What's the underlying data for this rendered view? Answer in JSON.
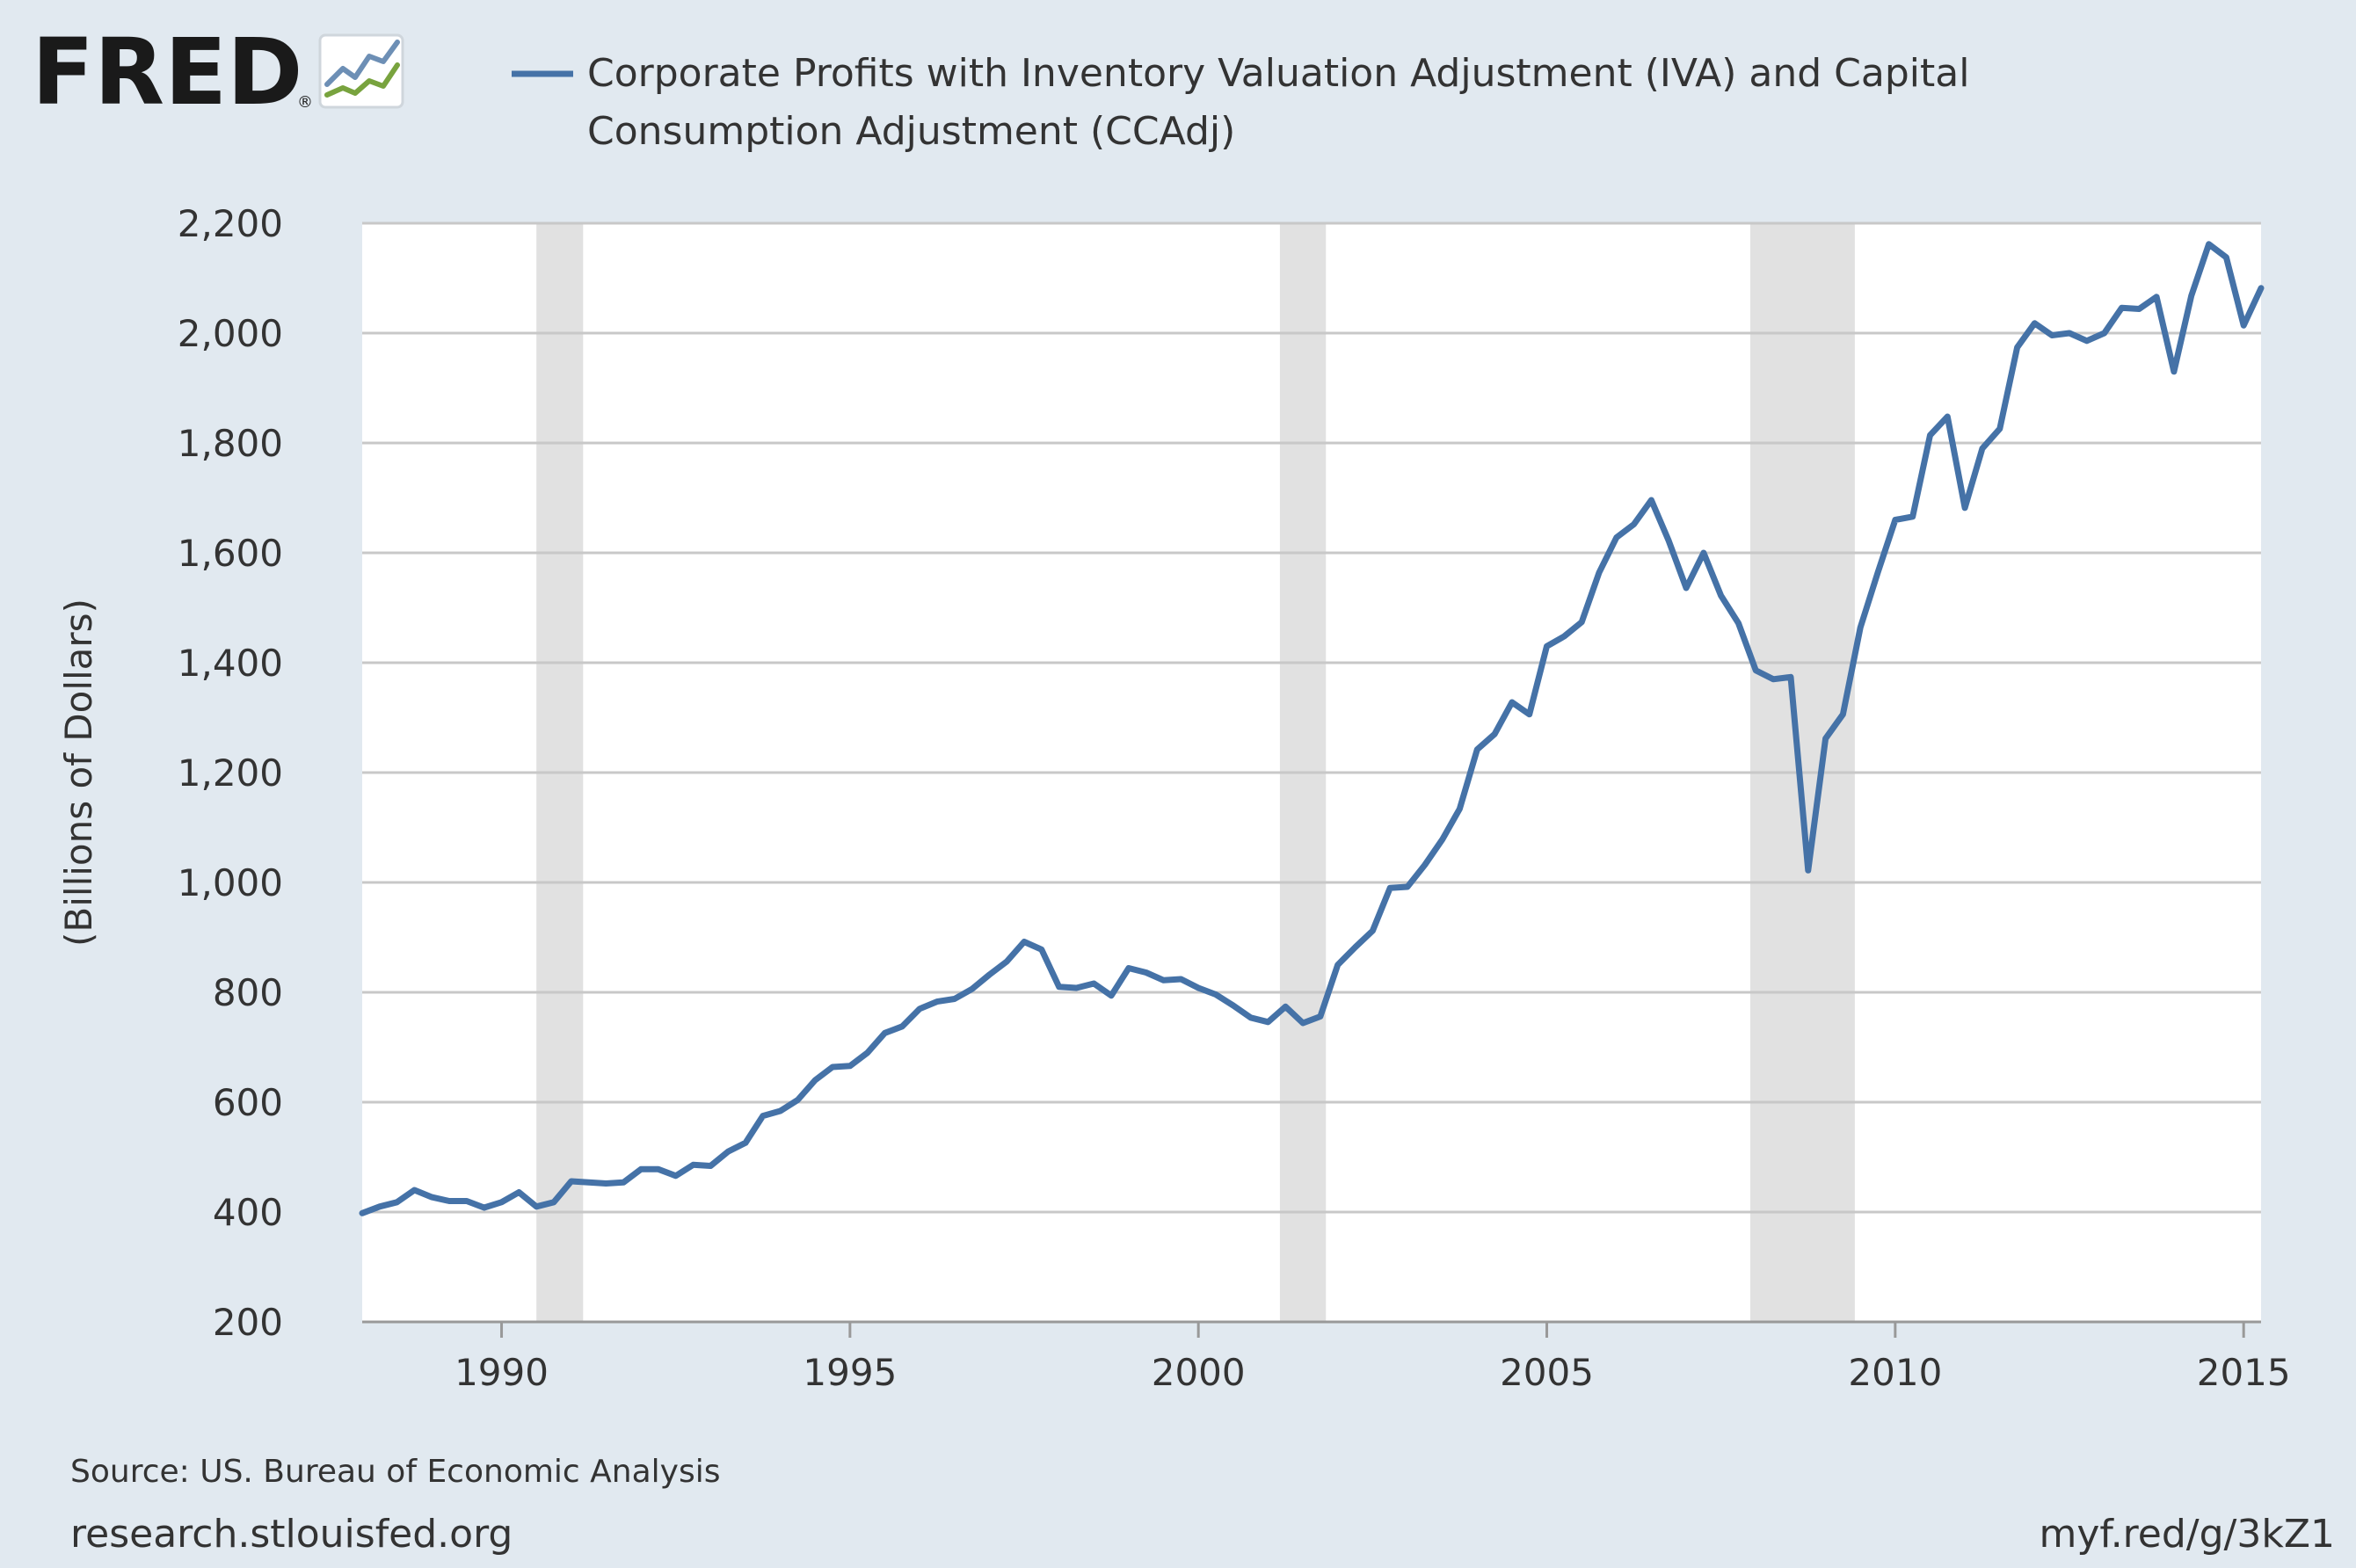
{
  "logo": {
    "text": "FRED",
    "registered_mark": "®"
  },
  "legend": {
    "lines": [
      "Corporate Profits with Inventory Valuation Adjustment (IVA) and Capital",
      "Consumption Adjustment (CCAdj)"
    ]
  },
  "footer": {
    "source": "Source: US. Bureau of Economic Analysis",
    "site": "research.stlouisfed.org",
    "short_link": "myf.red/g/3kZ1"
  },
  "colors": {
    "background": "#e1e9f0",
    "plot_background": "#ffffff",
    "series": "#4572a7",
    "recession": "#e1e1e1",
    "grid": "#c8c8c8",
    "text": "#333333",
    "logo_dark": "#1a1a1a",
    "logo_green": "#78a33e"
  },
  "chart_data": {
    "type": "line",
    "title": "",
    "xlabel": "",
    "ylabel": "(Billions of Dollars)",
    "xlim": [
      1988.0,
      2015.25
    ],
    "ylim": [
      200,
      2200
    ],
    "yticks": [
      200,
      400,
      600,
      800,
      1000,
      1200,
      1400,
      1600,
      1800,
      2000,
      2200
    ],
    "ytick_labels": [
      "200",
      "400",
      "600",
      "800",
      "1,000",
      "1,200",
      "1,400",
      "1,600",
      "1,800",
      "2,000",
      "2,200"
    ],
    "xticks": [
      1990,
      1995,
      2000,
      2005,
      2010,
      2015
    ],
    "xtick_labels": [
      "1990",
      "1995",
      "2000",
      "2005",
      "2010",
      "2015"
    ],
    "grid": "horizontal",
    "legend_position": "top",
    "recessions": [
      [
        1990.5,
        1991.17
      ],
      [
        2001.17,
        2001.83
      ],
      [
        2007.92,
        2009.42
      ]
    ],
    "series": [
      {
        "name": "Corporate Profits with Inventory Valuation Adjustment (IVA) and Capital Consumption Adjustment (CCAdj)",
        "x": [
          1988.0,
          1988.25,
          1988.5,
          1988.75,
          1989.0,
          1989.25,
          1989.5,
          1989.75,
          1990.0,
          1990.25,
          1990.5,
          1990.75,
          1991.0,
          1991.25,
          1991.5,
          1991.75,
          1992.0,
          1992.25,
          1992.5,
          1992.75,
          1993.0,
          1993.25,
          1993.5,
          1993.75,
          1994.0,
          1994.25,
          1994.5,
          1994.75,
          1995.0,
          1995.25,
          1995.5,
          1995.75,
          1996.0,
          1996.25,
          1996.5,
          1996.75,
          1997.0,
          1997.25,
          1997.5,
          1997.75,
          1998.0,
          1998.25,
          1998.5,
          1998.75,
          1999.0,
          1999.25,
          1999.5,
          1999.75,
          2000.0,
          2000.25,
          2000.5,
          2000.75,
          2001.0,
          2001.25,
          2001.5,
          2001.75,
          2002.0,
          2002.25,
          2002.5,
          2002.75,
          2003.0,
          2003.25,
          2003.5,
          2003.75,
          2004.0,
          2004.25,
          2004.5,
          2004.75,
          2005.0,
          2005.25,
          2005.5,
          2005.75,
          2006.0,
          2006.25,
          2006.5,
          2006.75,
          2007.0,
          2007.25,
          2007.5,
          2007.75,
          2008.0,
          2008.25,
          2008.5,
          2008.75,
          2009.0,
          2009.25,
          2009.5,
          2009.75,
          2010.0,
          2010.25,
          2010.5,
          2010.75,
          2011.0,
          2011.25,
          2011.5,
          2011.75,
          2012.0,
          2012.25,
          2012.5,
          2012.75,
          2013.0,
          2013.25,
          2013.5,
          2013.75,
          2014.0,
          2014.25,
          2014.5,
          2014.75,
          2015.0,
          2015.25
        ],
        "values": [
          398,
          410,
          418,
          440,
          427,
          420,
          420,
          408,
          418,
          436,
          410,
          418,
          456,
          454,
          452,
          454,
          478,
          478,
          466,
          486,
          484,
          510,
          526,
          575,
          584,
          604,
          640,
          664,
          666,
          690,
          726,
          738,
          770,
          783,
          788,
          806,
          832,
          856,
          892,
          878,
          810,
          808,
          816,
          794,
          844,
          836,
          822,
          824,
          808,
          796,
          776,
          754,
          746,
          774,
          744,
          756,
          850,
          882,
          912,
          990,
          992,
          1032,
          1078,
          1134,
          1242,
          1270,
          1328,
          1306,
          1430,
          1448,
          1474,
          1564,
          1628,
          1652,
          1696,
          1622,
          1536,
          1600,
          1522,
          1472,
          1386,
          1370,
          1374,
          1022,
          1262,
          1306,
          1464,
          1564,
          1660,
          1666,
          1814,
          1848,
          1682,
          1790,
          1826,
          1974,
          2018,
          1996,
          2000,
          1986,
          2000,
          2046,
          2044,
          2066,
          1930,
          2068,
          2162,
          2138,
          2014,
          2082
        ]
      }
    ]
  }
}
